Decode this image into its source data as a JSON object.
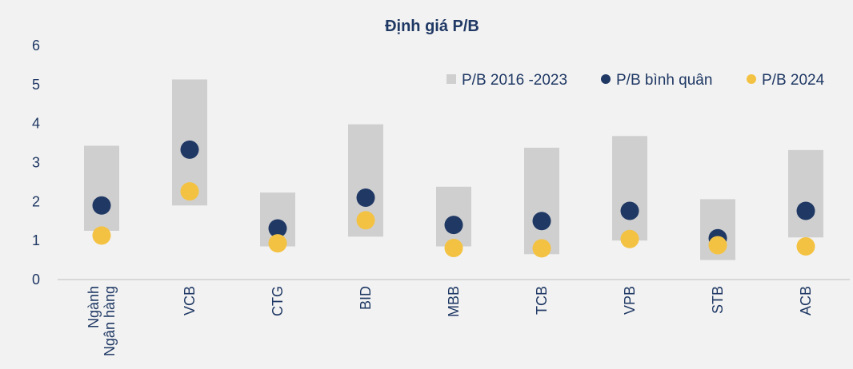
{
  "chart_data": {
    "type": "scatter",
    "title": "Định giá P/B",
    "xlabel": "",
    "ylabel": "",
    "categories": [
      "Ngành Ngân hàng",
      "VCB",
      "CTG",
      "BID",
      "MBB",
      "TCB",
      "VPB",
      "STB",
      "ACB"
    ],
    "category_lines": [
      [
        "Ngành",
        "Ngân hàng"
      ],
      [
        "VCB"
      ],
      [
        "CTG"
      ],
      [
        "BID"
      ],
      [
        "MBB"
      ],
      [
        "TCB"
      ],
      [
        "VPB"
      ],
      [
        "STB"
      ],
      [
        "ACB"
      ]
    ],
    "y_ticks": [
      "0",
      "1",
      "2",
      "3",
      "4",
      "5",
      "6"
    ],
    "ylim": [
      0,
      6
    ],
    "grid": false,
    "legend_position": "top-right",
    "series": [
      {
        "name": "P/B 2016 -2023",
        "kind": "range",
        "color": "#cfcfcf",
        "low": [
          1.25,
          1.9,
          0.85,
          1.1,
          0.85,
          0.65,
          1.0,
          0.5,
          1.08
        ],
        "high": [
          3.43,
          5.13,
          2.23,
          3.98,
          2.38,
          3.38,
          3.68,
          2.06,
          3.32
        ]
      },
      {
        "name": "P/B bình quân",
        "kind": "point",
        "color": "#1f3864",
        "values": [
          1.9,
          3.33,
          1.31,
          2.1,
          1.4,
          1.5,
          1.76,
          1.06,
          1.76
        ]
      },
      {
        "name": "P/B 2024",
        "kind": "point",
        "color": "#f4c242",
        "values": [
          1.13,
          2.26,
          0.93,
          1.52,
          0.81,
          0.8,
          1.04,
          0.88,
          0.85
        ]
      }
    ]
  }
}
